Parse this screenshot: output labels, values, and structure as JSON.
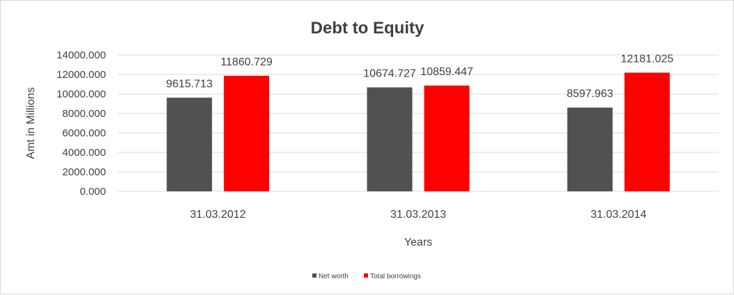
{
  "chart_data": {
    "type": "bar",
    "title": "Debt to Equity",
    "xlabel": "Years",
    "ylabel": "Amt in Millions",
    "categories": [
      "31.03.2012",
      "31.03.2013",
      "31.03.2014"
    ],
    "series": [
      {
        "name": "Net worth",
        "values": [
          9615.713,
          10674.727,
          8597.963
        ],
        "labels": [
          "9615.713",
          "10674.727",
          "8597.963"
        ],
        "color": "#515151"
      },
      {
        "name": "Total borrowings",
        "values": [
          11860.729,
          10859.447,
          12181.025
        ],
        "labels": [
          "11860.729",
          "10859.447",
          "12181.025"
        ],
        "color": "#ff0000"
      }
    ],
    "ylim": [
      0,
      14000
    ],
    "yticks": [
      "0.000",
      "2000.000",
      "4000.000",
      "6000.000",
      "8000.000",
      "10000.000",
      "12000.000",
      "14000.000"
    ],
    "grid": true,
    "legend": "bottom"
  }
}
